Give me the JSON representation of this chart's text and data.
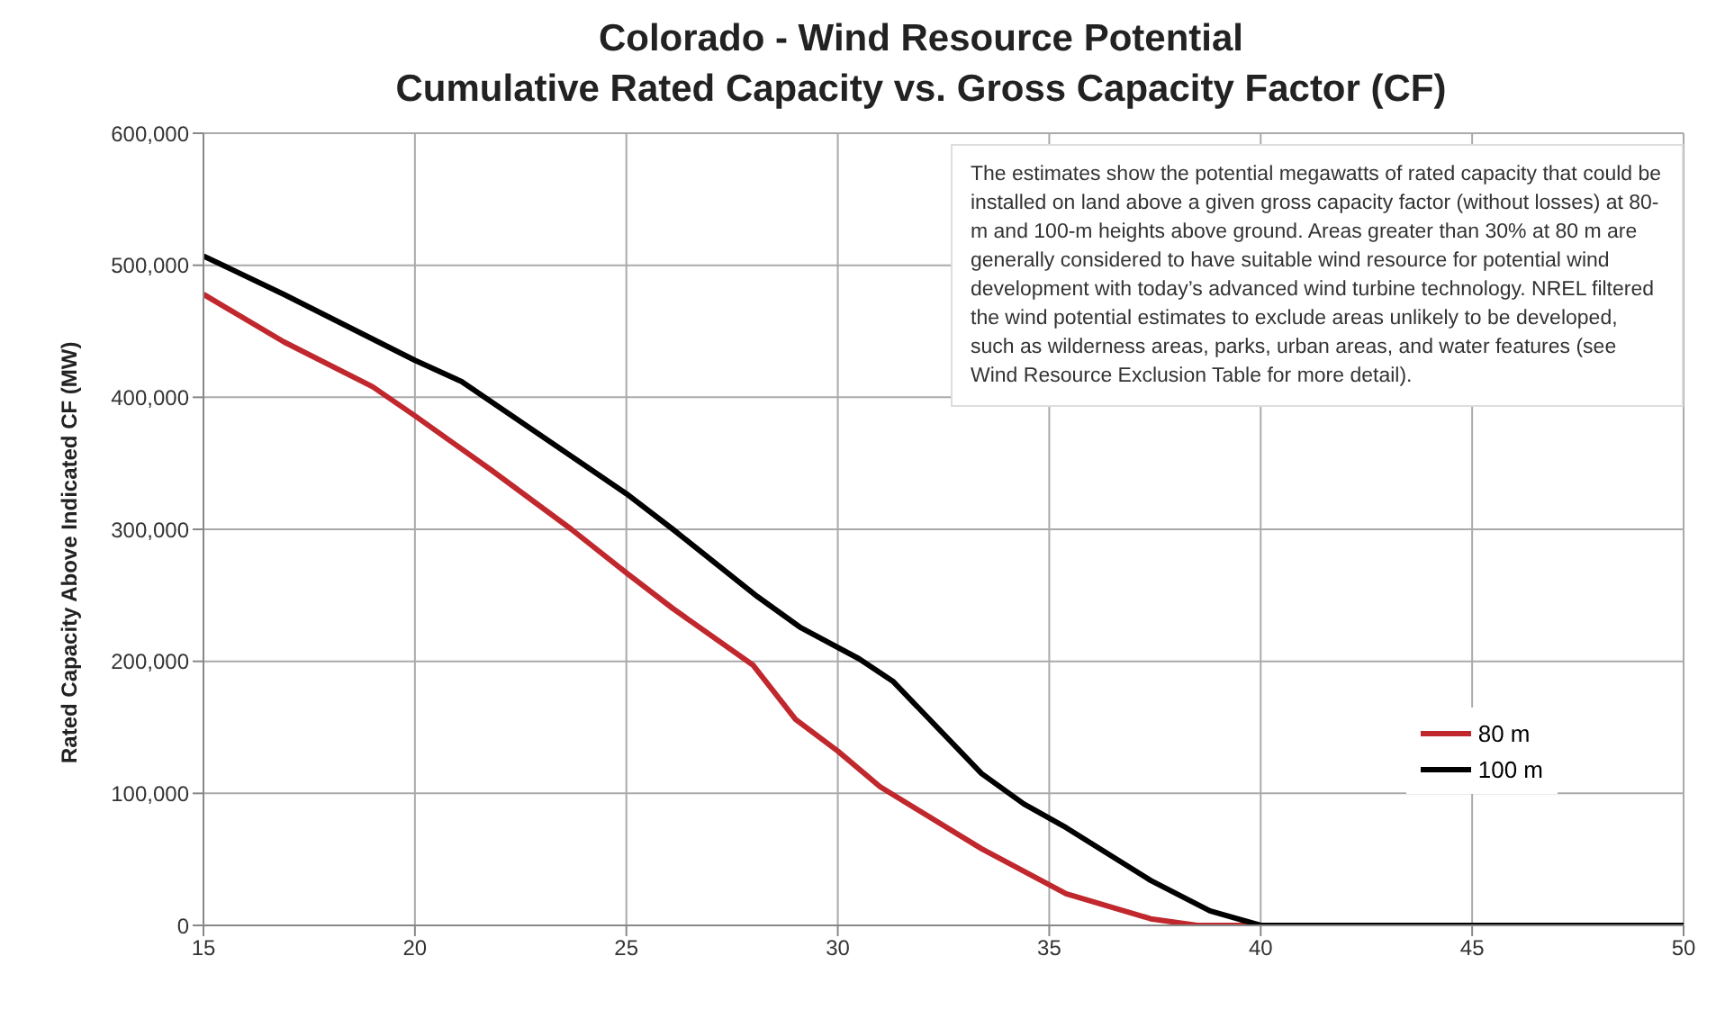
{
  "chart_data": {
    "type": "line",
    "title": "Colorado - Wind Resource Potential",
    "subtitle": "Cumulative Rated Capacity vs. Gross Capacity Factor (CF)",
    "ylabel": "Rated Capacity Above Indicated CF (MW)",
    "annotations": [
      "The estimates show the potential megawatts of rated capacity that could be installed on land above a given gross capacity factor (without losses) at 80-m and 100-m heights above ground. Areas greater than 30% at 80 m are generally considered to have suitable wind resource for potential wind development with today’s advanced wind turbine technology. NREL filtered the wind potential estimates to exclude areas unlikely to be developed, such as wilderness areas, parks, urban areas, and water features (see Wind Resource Exclusion Table for more detail)."
    ],
    "series": [
      {
        "name": "80 m",
        "color": "#c0282d",
        "x": [
          15,
          16.9,
          19,
          20,
          21.8,
          23.7,
          25,
          26.1,
          28,
          29,
          30,
          31,
          33.4,
          35.4,
          37.4,
          38.5,
          40,
          45,
          50
        ],
        "values": [
          478000,
          442000,
          408000,
          386000,
          345000,
          300000,
          267000,
          240000,
          197000,
          156000,
          132000,
          105000,
          58000,
          24000,
          5000,
          0,
          0,
          0,
          0
        ]
      },
      {
        "name": "100 m",
        "color": "#000000",
        "x": [
          15,
          16.9,
          20,
          21.1,
          25,
          26.1,
          28.1,
          29.1,
          30.5,
          31.3,
          33.4,
          34.4,
          35.4,
          37.4,
          38.8,
          40,
          45,
          50
        ],
        "values": [
          507000,
          478000,
          428000,
          412000,
          327000,
          300000,
          249000,
          226000,
          202000,
          185000,
          115000,
          92000,
          74000,
          34000,
          11000,
          0,
          0,
          0
        ]
      }
    ],
    "xlim": [
      15,
      50
    ],
    "xticks": [
      15,
      20,
      25,
      30,
      35,
      40,
      45,
      50
    ],
    "ylim": [
      0,
      600000
    ],
    "yticks": [
      {
        "value": 0,
        "label": "0"
      },
      {
        "value": 100000,
        "label": "100,000"
      },
      {
        "value": 200000,
        "label": "200,000"
      },
      {
        "value": 300000,
        "label": "300,000"
      },
      {
        "value": 400000,
        "label": "400,000"
      },
      {
        "value": 500000,
        "label": "500,000"
      },
      {
        "value": 600000,
        "label": "600,000"
      }
    ],
    "grid": true,
    "legend": "right"
  }
}
